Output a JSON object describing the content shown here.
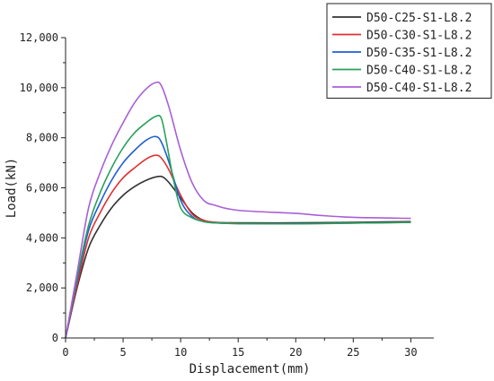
{
  "chart_data": {
    "type": "line",
    "title": "",
    "xlabel": "Displacement(mm)",
    "ylabel": "Load(kN)",
    "xlim": [
      0,
      32
    ],
    "ylim": [
      0,
      12000
    ],
    "xticks": [
      0,
      5,
      10,
      15,
      20,
      25,
      30
    ],
    "xtick_labels": [
      "0",
      "5",
      "10",
      "15",
      "20",
      "25",
      "30"
    ],
    "yticks": [
      0,
      2000,
      4000,
      6000,
      8000,
      10000,
      12000
    ],
    "ytick_labels": [
      "0",
      "2,000",
      "4,000",
      "6,000",
      "8,000",
      "10,000",
      "12,000"
    ],
    "grid": false,
    "legend_position": "top-right",
    "series": [
      {
        "name": "D50-C25-S1-L8.2",
        "color": "#333333",
        "points": [
          [
            0,
            0
          ],
          [
            1,
            2000
          ],
          [
            2,
            3600
          ],
          [
            3,
            4500
          ],
          [
            4,
            5200
          ],
          [
            5,
            5700
          ],
          [
            6,
            6050
          ],
          [
            7,
            6300
          ],
          [
            8,
            6450
          ],
          [
            8.5,
            6420
          ],
          [
            9,
            6200
          ],
          [
            10,
            5600
          ],
          [
            11,
            5000
          ],
          [
            12,
            4700
          ],
          [
            13,
            4620
          ],
          [
            15,
            4600
          ],
          [
            20,
            4600
          ],
          [
            25,
            4620
          ],
          [
            30,
            4650
          ]
        ]
      },
      {
        "name": "D50-C30-S1-L8.2",
        "color": "#e03030",
        "points": [
          [
            0,
            0
          ],
          [
            1,
            2100
          ],
          [
            2,
            4000
          ],
          [
            3,
            5000
          ],
          [
            4,
            5800
          ],
          [
            5,
            6400
          ],
          [
            6,
            6800
          ],
          [
            7,
            7150
          ],
          [
            7.8,
            7300
          ],
          [
            8.3,
            7200
          ],
          [
            9,
            6700
          ],
          [
            10,
            5700
          ],
          [
            11,
            4950
          ],
          [
            12,
            4700
          ],
          [
            13,
            4620
          ],
          [
            15,
            4580
          ],
          [
            20,
            4570
          ],
          [
            25,
            4590
          ],
          [
            30,
            4630
          ]
        ]
      },
      {
        "name": "D50-C35-S1-L8.2",
        "color": "#1e5fd6",
        "points": [
          [
            0,
            0
          ],
          [
            1,
            2300
          ],
          [
            2,
            4300
          ],
          [
            3,
            5400
          ],
          [
            4,
            6300
          ],
          [
            5,
            7000
          ],
          [
            6,
            7500
          ],
          [
            7,
            7900
          ],
          [
            7.8,
            8050
          ],
          [
            8.3,
            7850
          ],
          [
            9,
            7000
          ],
          [
            10,
            5500
          ],
          [
            11,
            4850
          ],
          [
            12,
            4650
          ],
          [
            13,
            4600
          ],
          [
            15,
            4570
          ],
          [
            20,
            4570
          ],
          [
            25,
            4590
          ],
          [
            30,
            4620
          ]
        ]
      },
      {
        "name": "D50-C40-S1-L8.2",
        "color": "#2ca05a",
        "points": [
          [
            0,
            0
          ],
          [
            1,
            2400
          ],
          [
            2,
            4500
          ],
          [
            3,
            5800
          ],
          [
            4,
            6800
          ],
          [
            5,
            7600
          ],
          [
            6,
            8200
          ],
          [
            7,
            8600
          ],
          [
            7.8,
            8850
          ],
          [
            8.3,
            8800
          ],
          [
            8.7,
            8000
          ],
          [
            9.3,
            6500
          ],
          [
            10,
            5200
          ],
          [
            11,
            4800
          ],
          [
            12,
            4650
          ],
          [
            13,
            4600
          ],
          [
            15,
            4570
          ],
          [
            20,
            4560
          ],
          [
            25,
            4590
          ],
          [
            30,
            4620
          ]
        ]
      },
      {
        "name": "D50-C40-S1-L8.2",
        "color": "#a95fd6",
        "points": [
          [
            0,
            0
          ],
          [
            1,
            2600
          ],
          [
            2,
            5200
          ],
          [
            3,
            6600
          ],
          [
            4,
            7700
          ],
          [
            5,
            8600
          ],
          [
            6,
            9400
          ],
          [
            7,
            9950
          ],
          [
            7.8,
            10200
          ],
          [
            8.3,
            10100
          ],
          [
            9,
            9200
          ],
          [
            10,
            7500
          ],
          [
            11,
            6200
          ],
          [
            12,
            5500
          ],
          [
            13,
            5300
          ],
          [
            15,
            5100
          ],
          [
            20,
            4980
          ],
          [
            22,
            4900
          ],
          [
            25,
            4820
          ],
          [
            30,
            4780
          ]
        ]
      }
    ]
  }
}
